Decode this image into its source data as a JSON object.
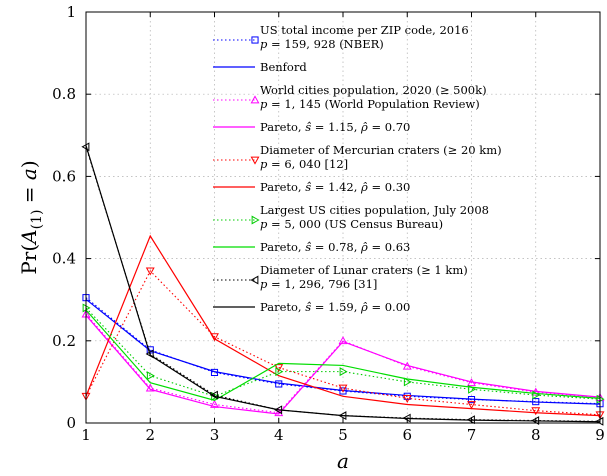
{
  "chart_data": {
    "type": "line",
    "x": [
      1,
      2,
      3,
      4,
      5,
      6,
      7,
      8,
      9
    ],
    "xlim": [
      1,
      9
    ],
    "ylim": [
      0,
      1
    ],
    "x_ticks": [
      "1",
      "2",
      "3",
      "4",
      "5",
      "6",
      "7",
      "8",
      "9"
    ],
    "y_ticks": [
      "0",
      "0.2",
      "0.4",
      "0.6",
      "0.8",
      "1"
    ],
    "y_tick_values": [
      0,
      0.2,
      0.4,
      0.6,
      0.8,
      1
    ],
    "xlabel": "a",
    "ylabel": "Pr(A(1) = a)",
    "grid": true,
    "legend_placement": "top-right",
    "series": [
      {
        "name": "US total income per ZIP code, 2016",
        "name_line2": "p = 159, 928 (NBER)",
        "color": "#0000ff",
        "style": "dotted",
        "marker": "square",
        "values": [
          0.305,
          0.178,
          0.123,
          0.095,
          0.078,
          0.065,
          0.057,
          0.052,
          0.047
        ]
      },
      {
        "name": "Benford",
        "color": "#0000ff",
        "style": "solid",
        "marker": "none",
        "values": [
          0.301,
          0.176,
          0.125,
          0.097,
          0.079,
          0.067,
          0.058,
          0.051,
          0.046
        ]
      },
      {
        "name": "World cities population, 2020 (≥ 500k)",
        "name_line2": "p = 1, 145 (World Population Review)",
        "color": "#ff00ff",
        "style": "dotted",
        "marker": "triangle-up",
        "values": [
          0.265,
          0.085,
          0.045,
          0.025,
          0.2,
          0.138,
          0.098,
          0.075,
          0.062
        ]
      },
      {
        "name": "Pareto, ŝ = 1.15, ρ̂ = 0.70",
        "color": "#ff00ff",
        "style": "solid",
        "marker": "none",
        "values": [
          0.262,
          0.082,
          0.04,
          0.022,
          0.198,
          0.14,
          0.1,
          0.077,
          0.063
        ]
      },
      {
        "name": "Diameter of Mercurian craters (≥ 20 km)",
        "name_line2": "p = 6, 040 [12]",
        "color": "#ff0000",
        "style": "dotted",
        "marker": "triangle-down",
        "values": [
          0.065,
          0.37,
          0.21,
          0.135,
          0.085,
          0.06,
          0.045,
          0.03,
          0.02
        ]
      },
      {
        "name": "Pareto, ŝ = 1.42, ρ̂ = 0.30",
        "color": "#ff0000",
        "style": "solid",
        "marker": "none",
        "values": [
          0.065,
          0.455,
          0.205,
          0.115,
          0.065,
          0.045,
          0.035,
          0.025,
          0.018
        ]
      },
      {
        "name": "Largest US cities population, July 2008",
        "name_line2": "p = 5, 000 (US Census Bureau)",
        "color": "#00cc00",
        "style": "dotted",
        "marker": "triangle-right",
        "values": [
          0.28,
          0.115,
          0.065,
          0.125,
          0.125,
          0.1,
          0.082,
          0.068,
          0.058
        ]
      },
      {
        "name": "Pareto, ŝ = 0.78, ρ̂ = 0.63",
        "color": "#00dd00",
        "style": "solid",
        "marker": "none",
        "values": [
          0.275,
          0.098,
          0.055,
          0.145,
          0.14,
          0.107,
          0.087,
          0.072,
          0.06
        ]
      },
      {
        "name": "Diameter of Lunar craters (≥ 1 km)",
        "name_line2": "p = 1, 296, 796 [31]",
        "color": "#000000",
        "style": "dotted",
        "marker": "triangle-left",
        "values": [
          0.672,
          0.168,
          0.068,
          0.032,
          0.018,
          0.012,
          0.008,
          0.006,
          0.004
        ]
      },
      {
        "name": "Pareto, ŝ = 1.59, ρ̂ = 0.00",
        "color": "#000000",
        "style": "solid",
        "marker": "none",
        "values": [
          0.675,
          0.165,
          0.065,
          0.032,
          0.018,
          0.011,
          0.007,
          0.005,
          0.003
        ]
      }
    ]
  }
}
